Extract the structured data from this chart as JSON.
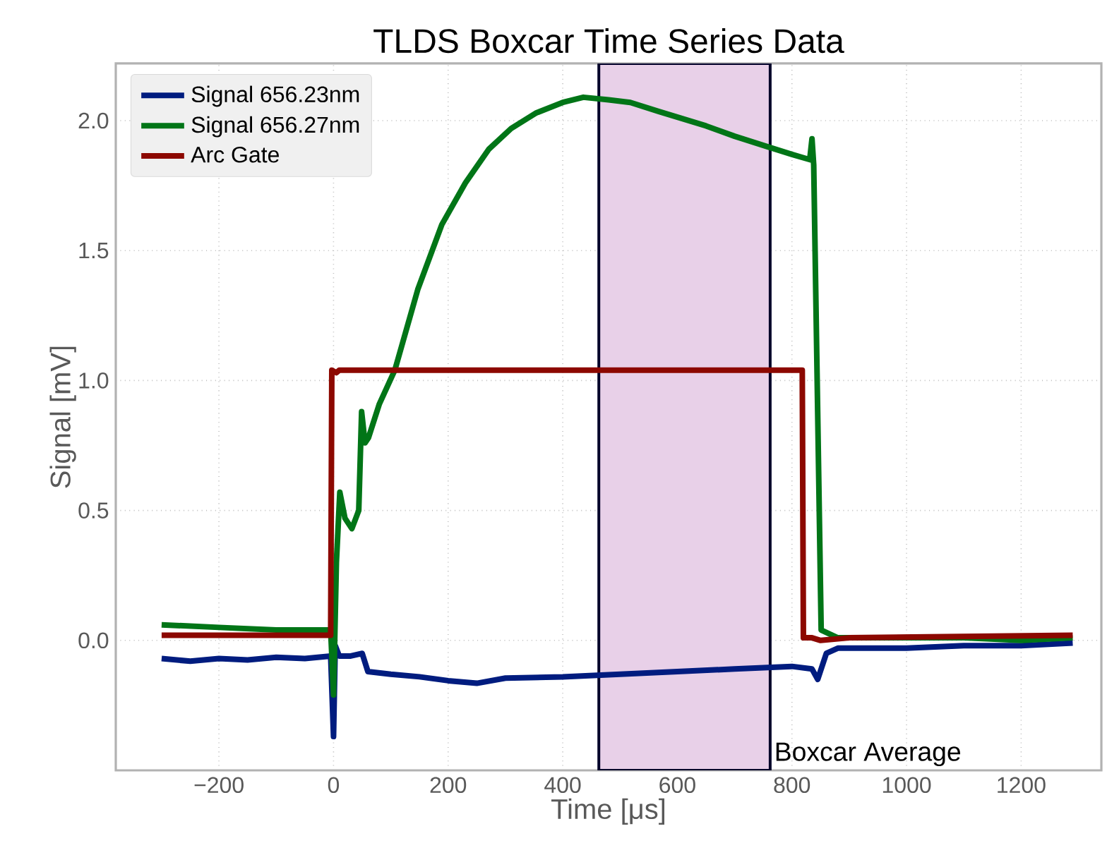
{
  "chart_data": {
    "type": "line",
    "title": "TLDS Boxcar Time Series Data",
    "xlabel": "Time [μs]",
    "ylabel": "Signal [mV]",
    "xlim": [
      -380,
      1340
    ],
    "ylim": [
      -0.5,
      2.22
    ],
    "xticks": [
      {
        "value": -200,
        "label": "−200"
      },
      {
        "value": 0,
        "label": "0"
      },
      {
        "value": 200,
        "label": "200"
      },
      {
        "value": 400,
        "label": "400"
      },
      {
        "value": 600,
        "label": "600"
      },
      {
        "value": 800,
        "label": "800"
      },
      {
        "value": 1000,
        "label": "1000"
      },
      {
        "value": 1200,
        "label": "1200"
      }
    ],
    "yticks": [
      {
        "value": 0,
        "label": "0.0"
      },
      {
        "value": 0.5,
        "label": "0.5"
      },
      {
        "value": 1,
        "label": "1.0"
      },
      {
        "value": 1.5,
        "label": "1.5"
      },
      {
        "value": 2,
        "label": "2.0"
      }
    ],
    "grid": true,
    "legend": "top left",
    "marker": "none",
    "line_style": "solid",
    "bands": [
      {
        "axis": "x",
        "from": 463,
        "to": 762,
        "label": "Boxcar Average",
        "color": "#e8d0e8"
      }
    ],
    "series": [
      {
        "name": "Signal 656.23nm",
        "color": "#001c7f",
        "x": [
          -300,
          -250,
          -200,
          -150,
          -100,
          -50,
          -5,
          0,
          3,
          10,
          30,
          50,
          60,
          100,
          150,
          200,
          250,
          300,
          400,
          500,
          600,
          700,
          800,
          835,
          845,
          860,
          880,
          1000,
          1100,
          1200,
          1290
        ],
        "values": [
          -0.07,
          -0.08,
          -0.07,
          -0.075,
          -0.065,
          -0.07,
          -0.06,
          -0.37,
          -0.02,
          -0.06,
          -0.06,
          -0.05,
          -0.12,
          -0.13,
          -0.14,
          -0.155,
          -0.165,
          -0.145,
          -0.14,
          -0.13,
          -0.12,
          -0.11,
          -0.1,
          -0.11,
          -0.15,
          -0.05,
          -0.03,
          -0.03,
          -0.02,
          -0.02,
          -0.01
        ]
      },
      {
        "name": "Signal 656.27nm",
        "color": "#017517",
        "x": [
          -300,
          -200,
          -100,
          -5,
          0,
          5,
          11,
          20,
          32,
          44,
          49,
          55,
          61,
          80,
          107,
          147,
          189,
          230,
          271,
          310,
          354,
          400,
          436,
          480,
          518,
          568,
          650,
          700,
          757,
          800,
          831,
          835,
          838,
          851,
          880,
          1000,
          1100,
          1200,
          1290
        ],
        "values": [
          0.06,
          0.05,
          0.04,
          0.04,
          -0.21,
          0.3,
          0.57,
          0.47,
          0.43,
          0.5,
          0.88,
          0.76,
          0.78,
          0.91,
          1.04,
          1.35,
          1.6,
          1.76,
          1.89,
          1.97,
          2.03,
          2.07,
          2.09,
          2.08,
          2.07,
          2.035,
          1.98,
          1.94,
          1.9,
          1.87,
          1.85,
          1.93,
          1.83,
          0.04,
          0.01,
          0.01,
          0.01,
          0.0,
          0.01
        ]
      },
      {
        "name": "Arc Gate",
        "color": "#8c0800",
        "x": [
          -300,
          -5,
          -3,
          5,
          10,
          818,
          820,
          835,
          850,
          900,
          1290
        ],
        "values": [
          0.02,
          0.02,
          1.04,
          1.03,
          1.04,
          1.04,
          0.01,
          0.01,
          0.0,
          0.01,
          0.02
        ]
      }
    ]
  }
}
